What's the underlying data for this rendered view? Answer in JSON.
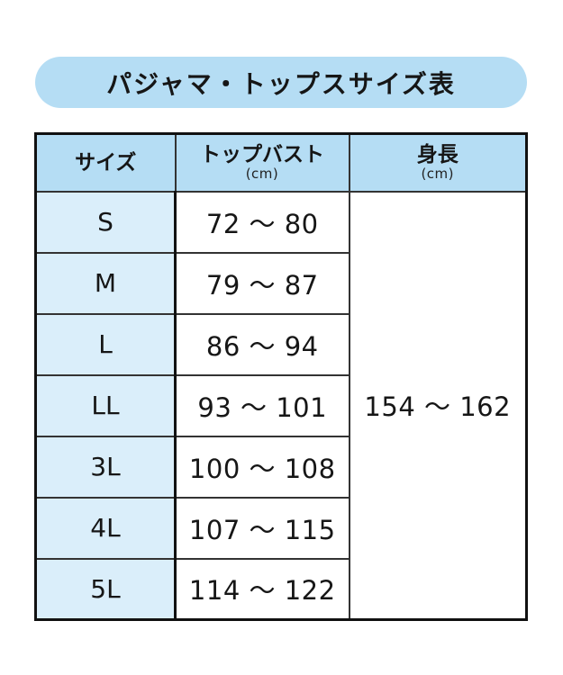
{
  "title": {
    "text": "パジャマ・トップスサイズ表",
    "pill_bg": "#b5ddf4"
  },
  "table": {
    "header_bg": "#b5ddf4",
    "size_column_bg": "#daeefa",
    "border_color": "#111111",
    "headers": [
      {
        "label": "サイズ",
        "unit": ""
      },
      {
        "label": "トップバスト",
        "unit": "(cm)"
      },
      {
        "label": "身長",
        "unit": "(cm)"
      }
    ],
    "rows": [
      {
        "size": "S",
        "bust": "72 〜 80"
      },
      {
        "size": "M",
        "bust": "79 〜 87"
      },
      {
        "size": "L",
        "bust": "86 〜 94"
      },
      {
        "size": "LL",
        "bust": "93 〜 101"
      },
      {
        "size": "3L",
        "bust": "100 〜 108"
      },
      {
        "size": "4L",
        "bust": "107 〜 115"
      },
      {
        "size": "5L",
        "bust": "114 〜 122"
      }
    ],
    "height_value": "154 〜 162"
  },
  "chart_data": {
    "type": "table",
    "title": "パジャマ・トップスサイズ表",
    "columns": [
      "サイズ",
      "トップバスト(cm)",
      "身長(cm)"
    ],
    "rows": [
      [
        "S",
        "72〜80",
        "154〜162"
      ],
      [
        "M",
        "79〜87",
        "154〜162"
      ],
      [
        "L",
        "86〜94",
        "154〜162"
      ],
      [
        "LL",
        "93〜101",
        "154〜162"
      ],
      [
        "3L",
        "100〜108",
        "154〜162"
      ],
      [
        "4L",
        "107〜115",
        "154〜162"
      ],
      [
        "5L",
        "114〜122",
        "154〜162"
      ]
    ],
    "notes": "身長(height) cell is merged across all 7 size rows"
  }
}
